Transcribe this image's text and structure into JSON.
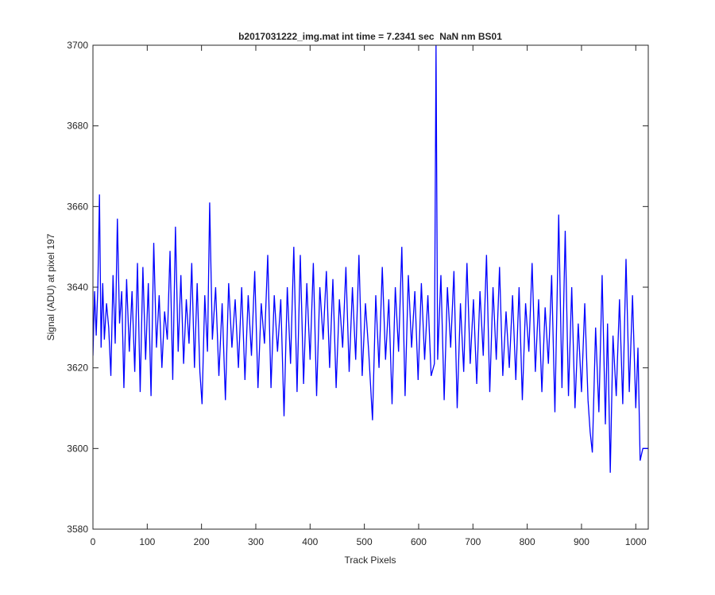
{
  "chart_data": {
    "type": "line",
    "title": "b2017031222_img.mat int time = 7.2341 sec  NaN nm BS01",
    "x_label": "Track Pixels",
    "y_label": "Signal (ADU) at pixel 197",
    "xlim": [
      0,
      1023
    ],
    "ylim": [
      3580,
      3700
    ],
    "xticks": [
      0,
      100,
      200,
      300,
      400,
      500,
      600,
      700,
      800,
      900,
      1000
    ],
    "yticks": [
      3580,
      3600,
      3620,
      3640,
      3660,
      3680,
      3700
    ],
    "grid": false,
    "series": [
      {
        "color": "#0000ff",
        "x": [
          0,
          3,
          6,
          9,
          12,
          15,
          18,
          21,
          25,
          29,
          33,
          37,
          41,
          45,
          49,
          53,
          57,
          62,
          67,
          72,
          77,
          82,
          87,
          92,
          97,
          102,
          107,
          112,
          117,
          122,
          127,
          132,
          137,
          142,
          147,
          152,
          157,
          162,
          167,
          172,
          177,
          182,
          187,
          192,
          197,
          201,
          206,
          211,
          215,
          220,
          226,
          232,
          238,
          244,
          250,
          256,
          262,
          268,
          274,
          280,
          286,
          292,
          298,
          304,
          310,
          316,
          322,
          328,
          334,
          340,
          346,
          352,
          358,
          364,
          370,
          376,
          382,
          388,
          394,
          400,
          406,
          412,
          418,
          424,
          430,
          436,
          442,
          448,
          454,
          460,
          466,
          472,
          478,
          484,
          490,
          496,
          502,
          508,
          515,
          521,
          527,
          533,
          539,
          545,
          551,
          557,
          563,
          569,
          575,
          581,
          587,
          593,
          599,
          605,
          611,
          617,
          623,
          629,
          632,
          635,
          641,
          647,
          653,
          659,
          665,
          671,
          677,
          683,
          689,
          695,
          701,
          707,
          713,
          719,
          725,
          731,
          737,
          743,
          749,
          755,
          761,
          767,
          773,
          779,
          785,
          791,
          797,
          803,
          809,
          815,
          821,
          827,
          833,
          839,
          845,
          851,
          858,
          864,
          870,
          876,
          882,
          888,
          894,
          900,
          906,
          912,
          916,
          920,
          926,
          932,
          938,
          944,
          948,
          953,
          958,
          964,
          970,
          976,
          982,
          988,
          994,
          1000,
          1004,
          1008,
          1013,
          1018,
          1023
        ],
        "values": [
          3623,
          3639,
          3628,
          3640,
          3663,
          3625,
          3641,
          3627,
          3636,
          3630,
          3618,
          3643,
          3626,
          3657,
          3631,
          3639,
          3615,
          3642,
          3624,
          3639,
          3619,
          3646,
          3614,
          3645,
          3622,
          3641,
          3613,
          3651,
          3625,
          3638,
          3620,
          3634,
          3627,
          3649,
          3617,
          3655,
          3624,
          3643,
          3621,
          3637,
          3626,
          3646,
          3620,
          3641,
          3619,
          3611,
          3638,
          3624,
          3661,
          3627,
          3640,
          3618,
          3636,
          3612,
          3641,
          3625,
          3637,
          3620,
          3640,
          3617,
          3638,
          3623,
          3644,
          3615,
          3636,
          3626,
          3648,
          3615,
          3638,
          3624,
          3637,
          3608,
          3640,
          3621,
          3650,
          3614,
          3648,
          3616,
          3641,
          3622,
          3646,
          3613,
          3640,
          3627,
          3644,
          3620,
          3642,
          3615,
          3637,
          3625,
          3645,
          3619,
          3640,
          3622,
          3648,
          3618,
          3636,
          3624,
          3607,
          3638,
          3620,
          3645,
          3622,
          3637,
          3611,
          3640,
          3624,
          3650,
          3613,
          3643,
          3625,
          3639,
          3617,
          3641,
          3622,
          3638,
          3618,
          3621,
          3700,
          3622,
          3643,
          3612,
          3640,
          3625,
          3644,
          3610,
          3636,
          3619,
          3646,
          3621,
          3637,
          3616,
          3639,
          3623,
          3648,
          3614,
          3640,
          3622,
          3645,
          3618,
          3634,
          3620,
          3638,
          3617,
          3640,
          3612,
          3636,
          3624,
          3646,
          3619,
          3637,
          3614,
          3635,
          3621,
          3643,
          3609,
          3658,
          3615,
          3654,
          3613,
          3640,
          3610,
          3631,
          3614,
          3636,
          3612,
          3604,
          3599,
          3630,
          3609,
          3643,
          3606,
          3631,
          3594,
          3628,
          3613,
          3637,
          3611,
          3647,
          3614,
          3638,
          3610,
          3625,
          3597,
          3600,
          3600,
          3600
        ]
      }
    ]
  }
}
